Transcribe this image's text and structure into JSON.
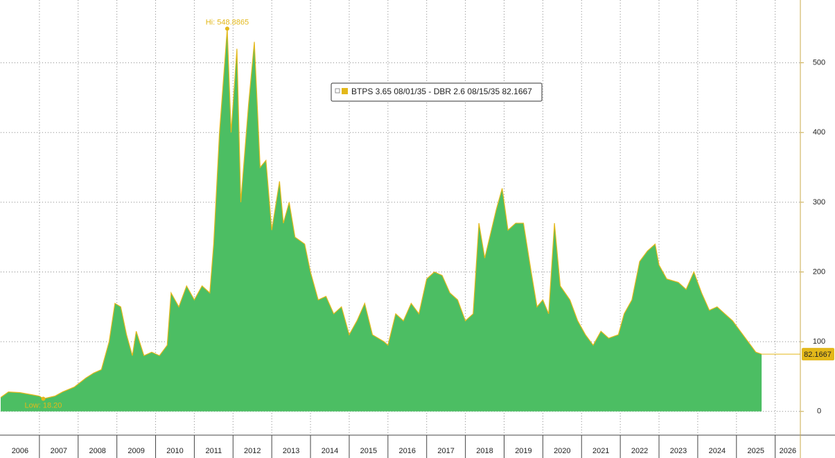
{
  "chart_data": {
    "type": "area",
    "series": [
      {
        "name": "BTPS 3.65 08/01/35 - DBR 2.6 08/15/35 82.1667",
        "color": "#4cbe63",
        "line_color": "#e3b81a",
        "x": [
          2006.0,
          2006.2,
          2006.5,
          2006.8,
          2007.0,
          2007.1,
          2007.4,
          2007.6,
          2007.9,
          2008.2,
          2008.4,
          2008.6,
          2008.8,
          2008.95,
          2009.1,
          2009.25,
          2009.4,
          2009.5,
          2009.7,
          2009.9,
          2010.1,
          2010.3,
          2010.4,
          2010.6,
          2010.8,
          2011.0,
          2011.2,
          2011.4,
          2011.5,
          2011.65,
          2011.85,
          2011.95,
          2012.1,
          2012.2,
          2012.4,
          2012.55,
          2012.7,
          2012.85,
          2013.0,
          2013.2,
          2013.3,
          2013.45,
          2013.6,
          2013.85,
          2014.0,
          2014.2,
          2014.4,
          2014.6,
          2014.8,
          2015.0,
          2015.2,
          2015.4,
          2015.6,
          2015.9,
          2016.0,
          2016.2,
          2016.4,
          2016.6,
          2016.8,
          2017.0,
          2017.2,
          2017.4,
          2017.6,
          2017.8,
          2018.0,
          2018.2,
          2018.35,
          2018.5,
          2018.8,
          2018.95,
          2019.1,
          2019.3,
          2019.5,
          2019.7,
          2019.85,
          2020.0,
          2020.15,
          2020.3,
          2020.45,
          2020.7,
          2020.9,
          2021.1,
          2021.3,
          2021.5,
          2021.7,
          2021.95,
          2022.1,
          2022.3,
          2022.5,
          2022.7,
          2022.9,
          2023.0,
          2023.2,
          2023.5,
          2023.7,
          2023.9,
          2024.1,
          2024.3,
          2024.5,
          2024.7,
          2024.9,
          2025.1,
          2025.3,
          2025.5,
          2025.65
        ],
        "values": [
          20,
          28,
          27,
          24,
          22,
          18.2,
          22,
          28,
          35,
          48,
          55,
          60,
          100,
          155,
          150,
          110,
          80,
          115,
          80,
          85,
          80,
          95,
          170,
          150,
          180,
          160,
          180,
          170,
          240,
          400,
          548.8865,
          400,
          520,
          300,
          440,
          530,
          350,
          360,
          260,
          330,
          270,
          300,
          250,
          240,
          200,
          160,
          165,
          140,
          150,
          110,
          130,
          155,
          110,
          100,
          95,
          140,
          130,
          155,
          140,
          190,
          200,
          195,
          170,
          160,
          130,
          140,
          270,
          220,
          290,
          320,
          260,
          270,
          270,
          200,
          150,
          160,
          140,
          270,
          180,
          160,
          130,
          110,
          95,
          115,
          105,
          110,
          140,
          160,
          215,
          230,
          240,
          210,
          190,
          185,
          175,
          200,
          170,
          145,
          150,
          140,
          130,
          115,
          100,
          85,
          82.1667
        ]
      }
    ],
    "annotations": {
      "high": "Hi: 548.8865",
      "low": "Low: 18.20"
    },
    "xlim": [
      2006,
      2026.65
    ],
    "xticks": [
      2006,
      2007,
      2008,
      2009,
      2010,
      2011,
      2012,
      2013,
      2014,
      2015,
      2016,
      2017,
      2018,
      2019,
      2020,
      2021,
      2022,
      2023,
      2024,
      2025,
      2026
    ],
    "ylim": [
      -34,
      590
    ],
    "yticks": [
      0,
      100,
      200,
      300,
      400,
      500
    ],
    "grid": true
  }
}
